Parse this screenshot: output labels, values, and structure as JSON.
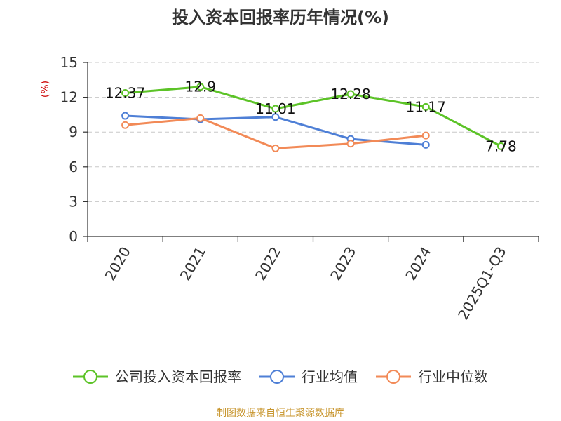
{
  "chart_data": {
    "type": "line",
    "title": "投入资本回报率历年情况(%)",
    "ylabel": "(%)",
    "xlabel": "",
    "categories": [
      "2020",
      "2021",
      "2022",
      "2023",
      "2024",
      "2025Q1-Q3"
    ],
    "ylim": [
      0,
      15
    ],
    "yticks": [
      0,
      3,
      6,
      9,
      12,
      15
    ],
    "grid": true,
    "legend_position": "bottom",
    "series": [
      {
        "name": "公司投入资本回报率",
        "color": "#5cc327",
        "values": [
          12.37,
          12.9,
          11.01,
          12.28,
          11.17,
          7.78
        ],
        "labels": [
          "12.37",
          "12.9",
          "11.01",
          "12.28",
          "11.17",
          "7.78"
        ]
      },
      {
        "name": "行业均值",
        "color": "#4e7fd6",
        "values": [
          10.4,
          10.1,
          10.3,
          8.4,
          7.9,
          null
        ]
      },
      {
        "name": "行业中位数",
        "color": "#f28a57",
        "values": [
          9.6,
          10.2,
          7.6,
          8.0,
          8.7,
          null
        ]
      }
    ]
  },
  "source_text": "制图数据来自恒生聚源数据库"
}
